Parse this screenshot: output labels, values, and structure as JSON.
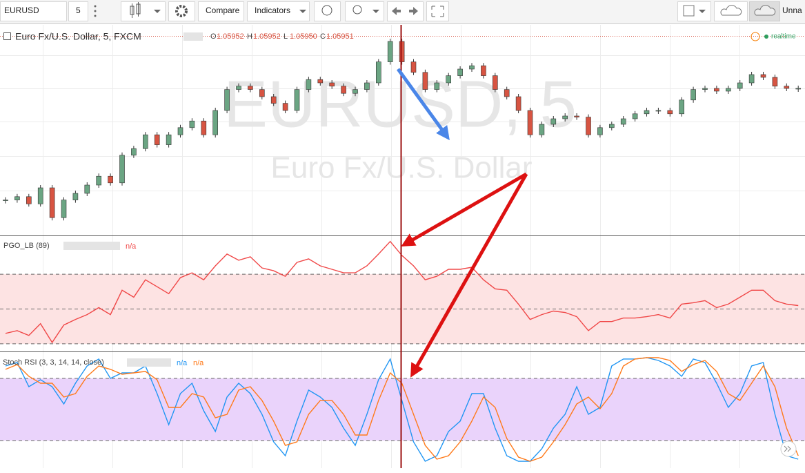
{
  "toolbar": {
    "symbol": "EURUSD",
    "interval": "5",
    "compare": "Compare",
    "indicators": "Indicators",
    "layout_name": "Unna"
  },
  "main": {
    "type": "candlestick",
    "title": "Euro Fx/U.S. Dollar, 5, FXCM",
    "ohlc": [
      {
        "label": "O",
        "value": 1.05952
      },
      {
        "label": "H",
        "value": 1.05952
      },
      {
        "label": "L",
        "value": 1.0595
      },
      {
        "label": "C",
        "value": 1.05951
      }
    ],
    "ohlc_texts": [
      "1.05952",
      "1.05952",
      "1.05950",
      "1.05951"
    ],
    "status": "realtime",
    "watermark": "EURUSD, 5",
    "watermark_subtitle": "Euro Fx/U.S. Dollar",
    "up_color": "#6ba583",
    "down_color": "#d75442",
    "close": [
      1.05663,
      1.05669,
      1.05656,
      1.05685,
      1.05631,
      1.05663,
      1.05675,
      1.0569,
      1.05706,
      1.05694,
      1.05744,
      1.05756,
      1.05781,
      1.05763,
      1.05781,
      1.05794,
      1.05806,
      1.05781,
      1.05825,
      1.05863,
      1.05869,
      1.05863,
      1.0585,
      1.05838,
      1.05825,
      1.05863,
      1.05881,
      1.05875,
      1.05869,
      1.05856,
      1.05863,
      1.05875,
      1.05913,
      1.0595,
      1.05913,
      1.05894,
      1.05863,
      1.05875,
      1.05888,
      1.059,
      1.05906,
      1.05888,
      1.05863,
      1.0585,
      1.05825,
      1.05781,
      1.058,
      1.0581,
      1.05815,
      1.05813,
      1.05781,
      1.05794,
      1.058,
      1.0581,
      1.05819,
      1.05825,
      1.05825,
      1.05819,
      1.05844,
      1.05863,
      1.05865,
      1.0586,
      1.05865,
      1.05875,
      1.0589,
      1.05885,
      1.05869,
      1.05865,
      1.05865
    ],
    "ylim": [
      1.056,
      1.0598
    ]
  },
  "pgo": {
    "type": "line",
    "title": "PGO_LB (89)",
    "value_text": "n/a",
    "color": "#f04848",
    "values": [
      -2.1,
      -1.86,
      -2.28,
      -1.26,
      -2.88,
      -1.38,
      -0.9,
      -0.48,
      0.12,
      -0.48,
      1.62,
      1.02,
      2.52,
      1.92,
      1.32,
      2.7,
      3.12,
      2.52,
      3.72,
      4.74,
      4.2,
      4.5,
      3.54,
      3.3,
      2.82,
      4.02,
      4.32,
      3.72,
      3.42,
      3.12,
      3.12,
      3.72,
      4.74,
      5.82,
      4.62,
      3.72,
      2.52,
      2.82,
      3.42,
      3.42,
      3.6,
      2.52,
      1.74,
      1.62,
      0.42,
      -0.9,
      -0.48,
      -0.18,
      -0.3,
      -0.66,
      -1.86,
      -1.08,
      -1.08,
      -0.78,
      -0.78,
      -0.66,
      -0.48,
      -0.78,
      0.42,
      0.54,
      0.72,
      0.12,
      0.42,
      1.02,
      1.62,
      1.62,
      0.72,
      0.42,
      0.3
    ],
    "levels": [
      -3,
      0,
      3
    ],
    "ylim": [
      -3.6,
      6.1
    ]
  },
  "stoch": {
    "type": "line",
    "title": "Stoch RSI (3, 3, 14, 14, close)",
    "series": [
      {
        "color": "#2196f3",
        "value_text": "n/a",
        "values": [
          92,
          95.3,
          72,
          78.7,
          72,
          55.3,
          75.3,
          92,
          98.7,
          80,
          85.3,
          85.3,
          92,
          65.3,
          35.3,
          65.3,
          75.3,
          48.7,
          28.7,
          62,
          75.3,
          65.3,
          45.3,
          18.7,
          5.3,
          38.7,
          68.7,
          62,
          52,
          32,
          15.3,
          45.3,
          78.7,
          98.7,
          58.7,
          18.7,
          0,
          5.3,
          28.7,
          38.7,
          65.3,
          65.3,
          32,
          5.3,
          0,
          0,
          12,
          32,
          45.3,
          72,
          45.3,
          52,
          92,
          98.7,
          98.7,
          100,
          97.3,
          92,
          82,
          98.7,
          95.3,
          75.3,
          52,
          65.3,
          92,
          95.3,
          45.3,
          5.3,
          2
        ]
      },
      {
        "color": "#ff7a1a",
        "value_text": "n/a",
        "values": [
          88.7,
          93.3,
          82,
          75.3,
          75.3,
          62,
          65.3,
          82,
          92,
          88.7,
          84,
          85.3,
          86.7,
          78.7,
          52,
          52,
          65.3,
          62,
          42,
          45.3,
          68.7,
          72,
          58.7,
          38.7,
          15.3,
          18.7,
          45.3,
          58.7,
          58.7,
          45.3,
          25.3,
          25.3,
          58.7,
          85.3,
          75.3,
          45.3,
          15.3,
          2,
          5.3,
          18.7,
          38.7,
          62,
          52,
          22,
          4,
          0,
          4,
          18.7,
          35.3,
          55.3,
          62,
          50.7,
          65.3,
          92,
          98.7,
          100,
          100,
          97.3,
          86.7,
          93.3,
          97.3,
          86.7,
          65.3,
          58.7,
          75.3,
          92,
          72,
          32,
          5.3
        ]
      }
    ],
    "levels": [
      20,
      80
    ],
    "ylim": [
      -6.67,
      104
    ]
  }
}
